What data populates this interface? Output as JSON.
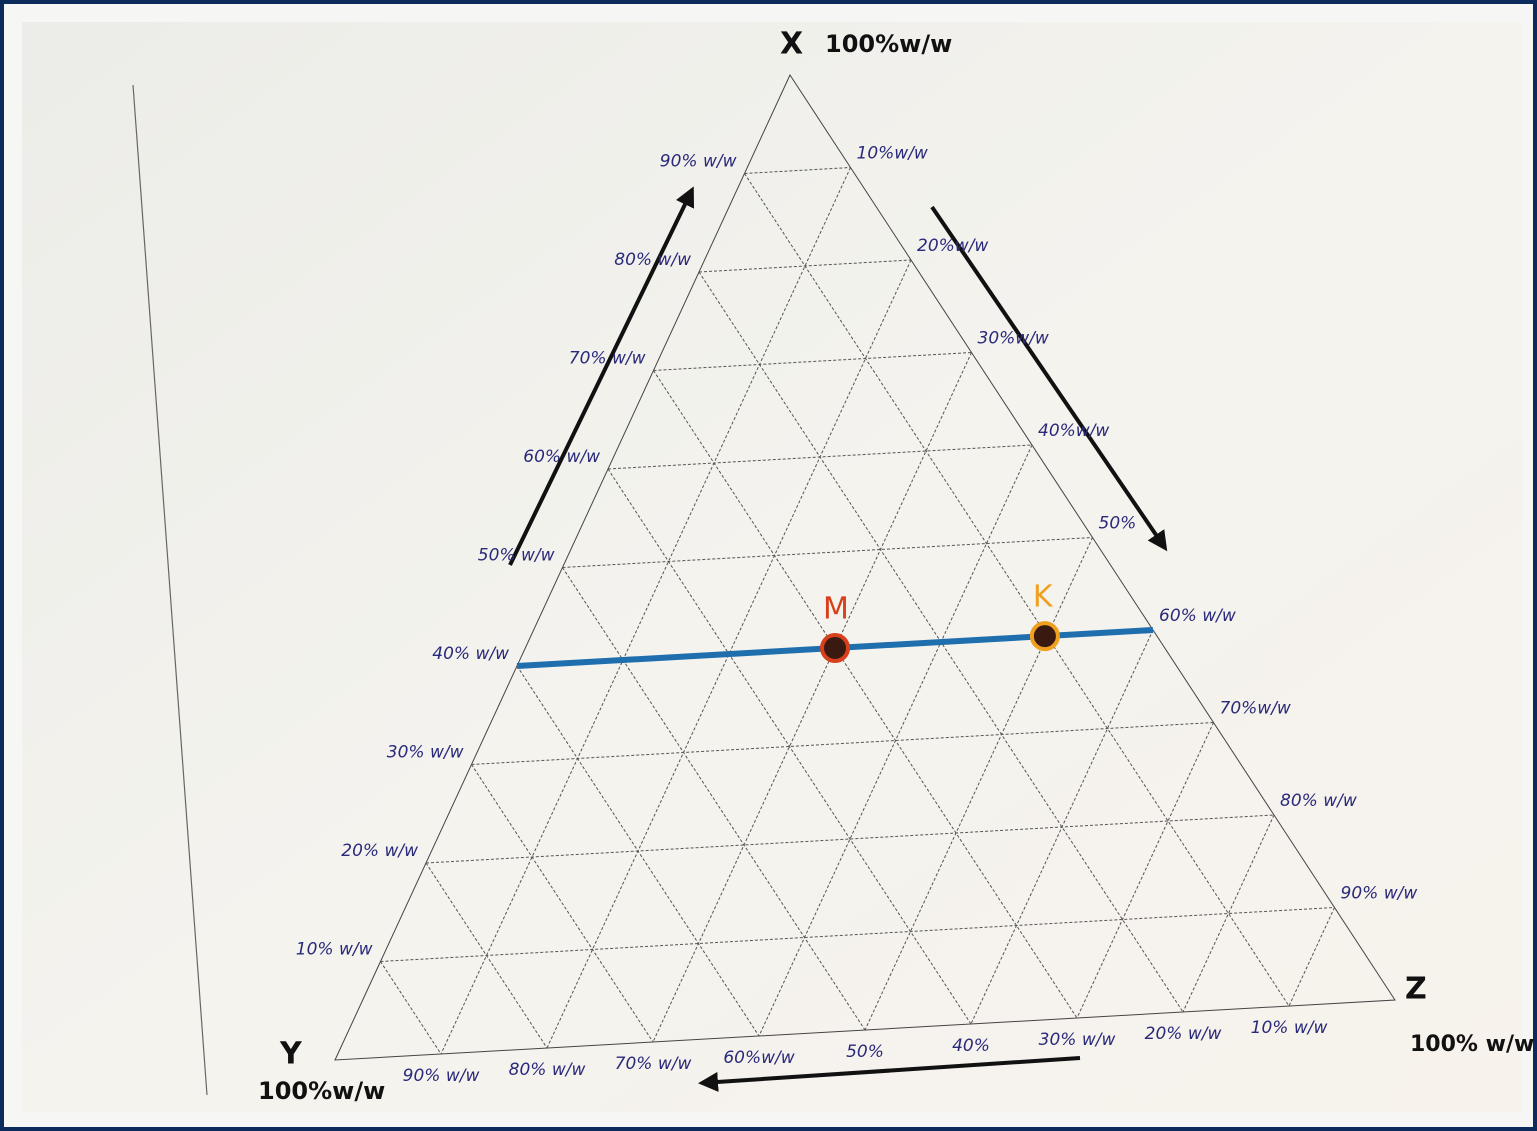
{
  "vertices": {
    "top": {
      "letter": "X",
      "label": "100%w/w"
    },
    "left": {
      "letter": "Y",
      "label": "100%w/w"
    },
    "right": {
      "letter": "Z",
      "label": "100% w/w"
    }
  },
  "left_side_labels": [
    "10% w/w",
    "20% w/w",
    "30% w/w",
    "40% w/w",
    "50% w/w",
    "60% w/w",
    "70% w/w",
    "80% w/w",
    "90% w/w"
  ],
  "right_side_labels": [
    "10%w/w",
    "20%w/w",
    "30%w/w",
    "40%w/w",
    "50%",
    "60% w/w",
    "70%w/w",
    "80% w/w",
    "90% w/w"
  ],
  "bottom_side_labels": [
    "10% w/w",
    "20% w/w",
    "30% w/w",
    "40%",
    "50%",
    "60%w/w",
    "70% w/w",
    "80% w/w",
    "90% w/w"
  ],
  "points": [
    {
      "label": "M",
      "color": "#d8401c"
    },
    {
      "label": "K",
      "color": "#f0a020"
    }
  ]
}
